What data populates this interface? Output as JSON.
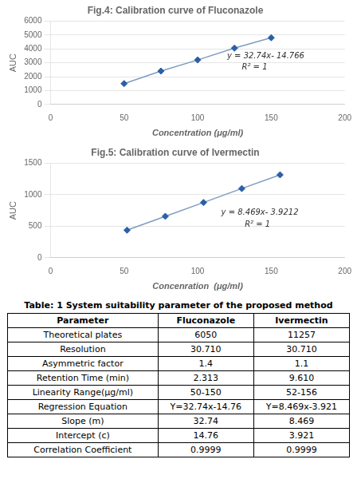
{
  "chart_data": [
    {
      "type": "line",
      "title": "Fig.4: Calibration curve of Fluconazole",
      "x": [
        50,
        75,
        100,
        125,
        150
      ],
      "series": [
        {
          "type": "line",
          "color": "#7F9CC0",
          "values": [
            1500,
            2400,
            3200,
            4050,
            4800
          ]
        },
        {
          "type": "scatter",
          "color": "#2D5FA6",
          "marker": "diamond",
          "values": [
            1500,
            2400,
            3200,
            4050,
            4800
          ]
        }
      ],
      "xlabel": "Concentration (μg/ml)",
      "ylabel": "AUC",
      "xlim": [
        0,
        200
      ],
      "ylim": [
        0,
        6000
      ],
      "xticks": [
        0,
        50,
        100,
        150,
        200
      ],
      "yticks": [
        0,
        1000,
        2000,
        3000,
        4000,
        5000,
        6000
      ],
      "grid": "y",
      "annotations": [
        "y = 32.74x- 14.766",
        "R² = 1"
      ]
    },
    {
      "type": "line",
      "title": "Fig.5: Calibration curve of Ivermectin",
      "x": [
        52,
        78,
        104,
        130,
        156
      ],
      "series": [
        {
          "type": "line",
          "color": "#7F9CC0",
          "values": [
            437,
            657,
            876,
            1098,
            1315
          ]
        },
        {
          "type": "scatter",
          "color": "#2D5FA6",
          "marker": "diamond",
          "values": [
            437,
            657,
            876,
            1098,
            1315
          ]
        }
      ],
      "xlabel": "Concenration  (μg/ml)",
      "ylabel": "AUC",
      "xlim": [
        0,
        200
      ],
      "ylim": [
        0,
        1500
      ],
      "xticks": [
        0,
        50,
        100,
        150,
        200
      ],
      "yticks": [
        0,
        500,
        1000,
        1500
      ],
      "grid": "y",
      "annotations": [
        "y = 8.469x- 3.9212",
        "R² = 1"
      ]
    },
    {
      "type": "table",
      "title": "Table: 1 System suitability parameter of the proposed method",
      "columns": [
        "Parameter",
        "Fluconazole",
        "Ivermectin"
      ],
      "rows": [
        [
          "Theoretical plates",
          "6050",
          "11257"
        ],
        [
          "Resolution",
          "30.710",
          "30.710"
        ],
        [
          "Asymmetric factor",
          "1.4",
          "1.1"
        ],
        [
          "Retention Time (min)",
          "2.313",
          "9.610"
        ],
        [
          "Linearity Range(μg/ml)",
          "50-150",
          "52-156"
        ],
        [
          "Regression Equation",
          "Y=32.74x-14.76",
          "Y=8.469x-3.921"
        ],
        [
          "Slope (m)",
          "32.74",
          "8.469"
        ],
        [
          "Intercept (c)",
          "14.76",
          "3.921"
        ],
        [
          "Correlation Coefficient",
          "0.9999",
          "0.9999"
        ]
      ]
    }
  ]
}
